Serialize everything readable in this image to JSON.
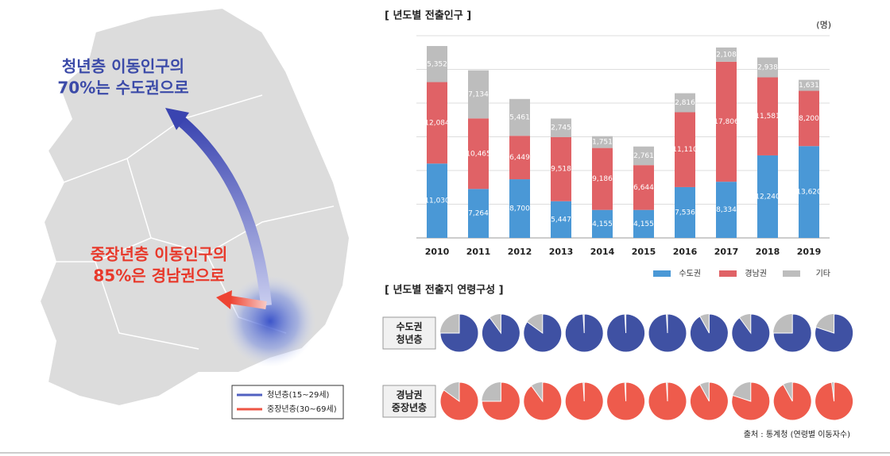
{
  "map": {
    "youth_lines": [
      "청년층 이동인구의",
      "70%는 수도권으로"
    ],
    "middle_lines": [
      "중장년층 이동인구의",
      "85%은 경남권으로"
    ],
    "legend": [
      "청년층(15~29세)",
      "중장년층(30~69세)"
    ]
  },
  "chart_data": [
    {
      "type": "bar",
      "stacked": true,
      "title": "[ 년도별 전출인구 ]",
      "unit": "(명)",
      "categories": [
        "2010",
        "2011",
        "2012",
        "2013",
        "2014",
        "2015",
        "2016",
        "2017",
        "2018",
        "2019"
      ],
      "series": [
        {
          "name": "수도권",
          "color": "#4a98d6",
          "values": [
            11030,
            7264,
            8700,
            5447,
            4155,
            4155,
            7536,
            8334,
            12240,
            13620
          ],
          "value_labels": [
            "11,030",
            "7,264",
            "8,700",
            "5,447",
            "4,155",
            "4,155",
            "7,536",
            "8,334",
            "12,240",
            "13,620"
          ]
        },
        {
          "name": "경남권",
          "color": "#e06266",
          "values": [
            12084,
            10465,
            6449,
            9518,
            9186,
            6644,
            11110,
            17806,
            11581,
            8200
          ],
          "value_labels": [
            "12,084",
            "10,465",
            "6,449",
            "9,518",
            "9,186",
            "6,644",
            "11,110",
            "17,806",
            "11,581",
            "8,200"
          ]
        },
        {
          "name": "기타",
          "color": "#bdbdbd",
          "values": [
            5352,
            7134,
            5461,
            2745,
            1751,
            2761,
            2816,
            2108,
            2938,
            1631
          ],
          "value_labels": [
            "5,352",
            "7,134",
            "5,461",
            "2,745",
            "1,751",
            "2,761",
            "2,816",
            "2,108",
            "2,938",
            "1,631"
          ]
        }
      ],
      "ylim": [
        0,
        30000
      ],
      "yticks": [
        0,
        5000,
        10000,
        15000,
        20000,
        25000,
        30000
      ],
      "grid": true,
      "legend": "bottom-right"
    },
    {
      "type": "pie",
      "title": "[ 년도별 전출지 연령구성 ]",
      "other_color": "#bdbdbd",
      "categories": [
        "2010",
        "2011",
        "2012",
        "2013",
        "2014",
        "2015",
        "2016",
        "2017",
        "2018",
        "2019"
      ],
      "series": [
        {
          "name": "수도권 청년층",
          "color": "#3f51a3",
          "values": [
            75,
            90,
            85,
            99,
            99,
            99,
            92,
            90,
            75,
            80
          ]
        },
        {
          "name": "경남권 중장년층",
          "color": "#ee5b4c",
          "values": [
            85,
            75,
            90,
            99,
            99,
            99,
            92,
            80,
            92,
            98
          ]
        }
      ],
      "source": "출처 : 통계청 (연령별 이동자수)"
    }
  ]
}
